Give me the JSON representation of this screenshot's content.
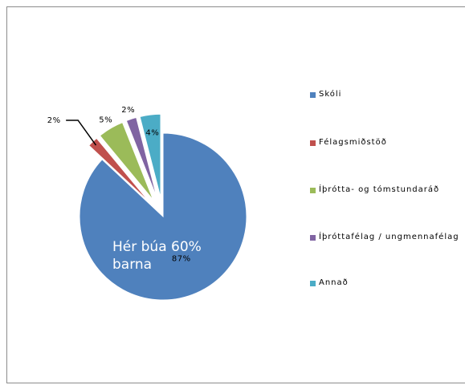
{
  "chart_data": {
    "type": "pie",
    "categories": [
      "Skóli",
      "Félagsmiðstöð",
      "Íþrótta- og tómstundaráð",
      "Íþróttafélag / ungmennafélag",
      "Annað"
    ],
    "values": [
      87,
      2,
      5,
      2,
      4
    ],
    "value_labels": [
      "87%",
      "2%",
      "5%",
      "2%",
      "4%"
    ],
    "colors": [
      "#4f81bd",
      "#c0504d",
      "#9bbb59",
      "#8064a2",
      "#4bacc6"
    ],
    "annotation": "Hér búa 60% barna",
    "legend": "right"
  }
}
